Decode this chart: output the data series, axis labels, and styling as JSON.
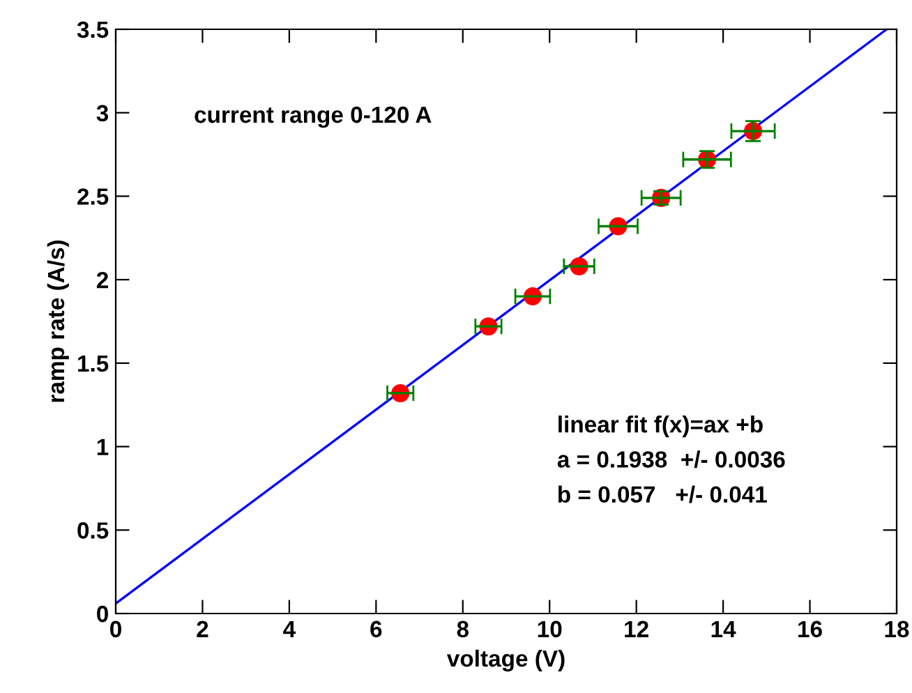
{
  "chart_data": {
    "type": "scatter",
    "xlabel": "voltage (V)",
    "ylabel": "ramp rate (A/s)",
    "xlim": [
      0,
      18
    ],
    "ylim": [
      0,
      3.5
    ],
    "xticks": [
      0,
      2,
      4,
      6,
      8,
      10,
      12,
      14,
      16,
      18
    ],
    "yticks": [
      0,
      0.5,
      1,
      1.5,
      2,
      2.5,
      3,
      3.5
    ],
    "grid": false,
    "series": [
      {
        "color": "#ff0000",
        "marker": "circle",
        "x": [
          6.56,
          8.59,
          9.61,
          10.68,
          11.58,
          12.57,
          13.63,
          14.69
        ],
        "values": [
          1.32,
          1.72,
          1.9,
          2.08,
          2.32,
          2.49,
          2.72,
          2.89
        ],
        "xerrors": [
          0.3,
          0.3,
          0.4,
          0.35,
          0.45,
          0.45,
          0.55,
          0.5
        ],
        "errors": [
          null,
          null,
          null,
          null,
          null,
          0.04,
          0.05,
          0.06
        ]
      },
      {
        "type": "line",
        "marker": "none",
        "color": "#0000ff",
        "x": [
          0,
          17.77
        ],
        "values": [
          0.06,
          3.5
        ]
      }
    ],
    "annotations": [
      "current range 0-120 A",
      "linear fit f(x)=ax +b",
      "a = 0.1938  +/- 0.0036",
      "b = 0.057   +/- 0.041"
    ]
  }
}
